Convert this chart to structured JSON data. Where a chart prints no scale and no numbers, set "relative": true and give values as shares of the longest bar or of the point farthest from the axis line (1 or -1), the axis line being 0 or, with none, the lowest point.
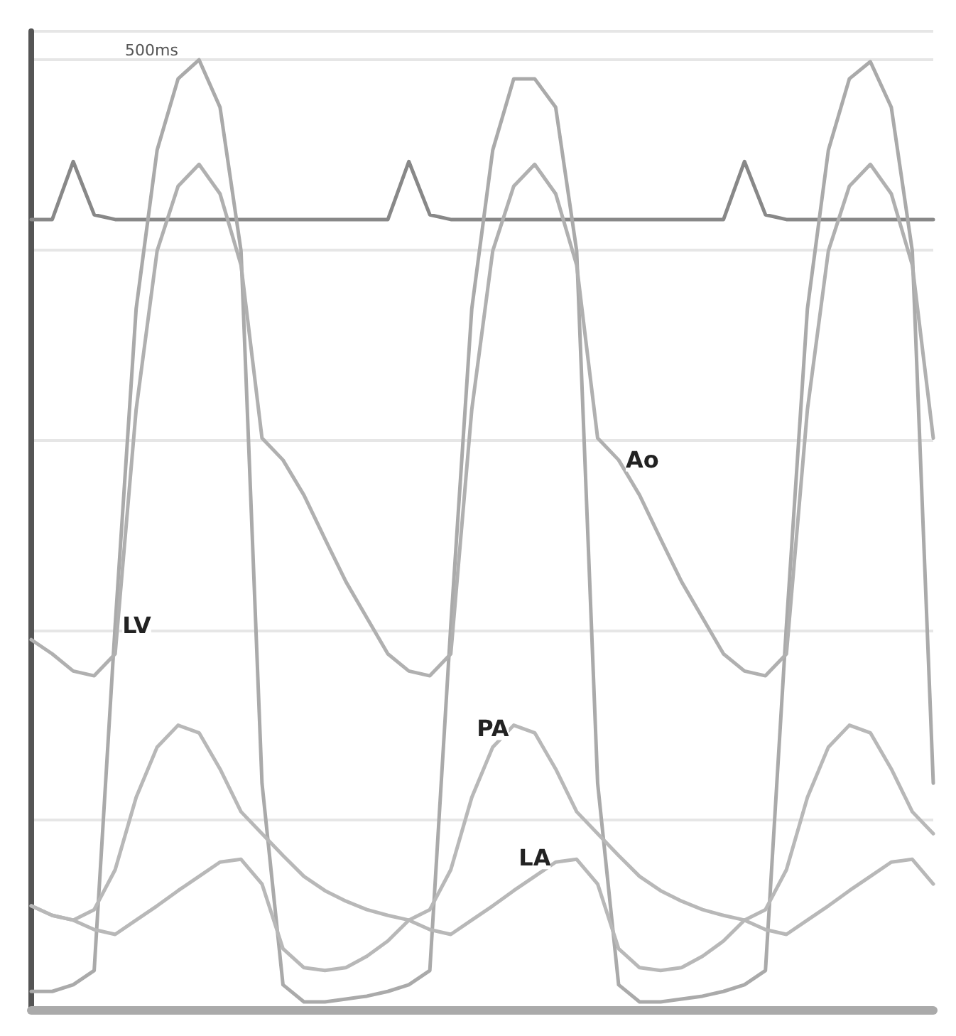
{
  "chart_data": {
    "type": "line",
    "relative": true,
    "grid": "y",
    "legend": false,
    "marker": "none",
    "line_style": "solid",
    "annotations": [
      "500ms"
    ],
    "categories": [
      null,
      null,
      null,
      null,
      null,
      null,
      null,
      null,
      null,
      null,
      null,
      null,
      null,
      null,
      null,
      null,
      null,
      null,
      null,
      null,
      null,
      null,
      null,
      null,
      null,
      null,
      null,
      null,
      null,
      null,
      null,
      null,
      null,
      null,
      null,
      null,
      null,
      null,
      null,
      null,
      null,
      null,
      null,
      null
    ],
    "series": [
      {
        "color": "#888888",
        "values": [
          0.832,
          0.832,
          0.893,
          0.837,
          0.832,
          0.832,
          0.832,
          0.832,
          0.832,
          0.832,
          0.832,
          0.832,
          0.832,
          0.832,
          0.832,
          0.832,
          0.832,
          0.832,
          0.893,
          0.837,
          0.832,
          0.832,
          0.832,
          0.832,
          0.832,
          0.832,
          0.832,
          0.832,
          0.832,
          0.832,
          0.832,
          0.832,
          0.832,
          0.832,
          0.893,
          0.837,
          0.832,
          0.832,
          0.832,
          0.832,
          0.832,
          0.832,
          0.832,
          0.832
        ]
      },
      {
        "name": "LV",
        "color": "#aaaaaa",
        "values": [
          0.02,
          0.02,
          0.027,
          0.042,
          0.405,
          0.738,
          0.905,
          0.98,
          1.0,
          0.95,
          0.799,
          0.239,
          0.027,
          0.009,
          0.009,
          0.012,
          0.015,
          0.02,
          0.027,
          0.042,
          0.405,
          0.738,
          0.905,
          0.98,
          0.98,
          0.95,
          0.799,
          0.239,
          0.027,
          0.009,
          0.009,
          0.012,
          0.015,
          0.02,
          0.027,
          0.042,
          0.405,
          0.738,
          0.905,
          0.98,
          0.998,
          0.95,
          0.799,
          0.239
        ]
      },
      {
        "name": "Ao",
        "color": "#b0b0b0",
        "values": [
          0.39,
          0.375,
          0.357,
          0.352,
          0.375,
          0.632,
          0.799,
          0.867,
          0.89,
          0.859,
          0.784,
          0.602,
          0.579,
          0.542,
          0.496,
          0.451,
          0.413,
          0.375,
          0.357,
          0.352,
          0.375,
          0.632,
          0.799,
          0.867,
          0.89,
          0.859,
          0.784,
          0.602,
          0.579,
          0.542,
          0.496,
          0.451,
          0.413,
          0.375,
          0.357,
          0.352,
          0.375,
          0.632,
          0.799,
          0.867,
          0.89,
          0.859,
          0.784,
          0.602
        ]
      },
      {
        "name": "PA",
        "color": "#b8b8b8",
        "values": [
          0.11,
          0.1,
          0.095,
          0.106,
          0.148,
          0.224,
          0.277,
          0.3,
          0.292,
          0.254,
          0.209,
          0.186,
          0.163,
          0.141,
          0.126,
          0.115,
          0.106,
          0.1,
          0.095,
          0.106,
          0.148,
          0.224,
          0.277,
          0.3,
          0.292,
          0.254,
          0.209,
          0.186,
          0.163,
          0.141,
          0.126,
          0.115,
          0.106,
          0.1,
          0.095,
          0.106,
          0.148,
          0.224,
          0.277,
          0.3,
          0.292,
          0.254,
          0.209,
          0.186
        ]
      },
      {
        "name": "LA",
        "color": "#b8b8b8",
        "values": [
          0.11,
          0.1,
          0.095,
          0.085,
          0.08,
          0.095,
          0.11,
          0.126,
          0.141,
          0.156,
          0.159,
          0.133,
          0.065,
          0.045,
          0.042,
          0.045,
          0.057,
          0.073,
          0.095,
          0.085,
          0.08,
          0.095,
          0.11,
          0.126,
          0.141,
          0.156,
          0.159,
          0.133,
          0.065,
          0.045,
          0.042,
          0.045,
          0.057,
          0.073,
          0.095,
          0.085,
          0.08,
          0.095,
          0.11,
          0.126,
          0.141,
          0.156,
          0.159,
          0.133
        ]
      }
    ]
  }
}
